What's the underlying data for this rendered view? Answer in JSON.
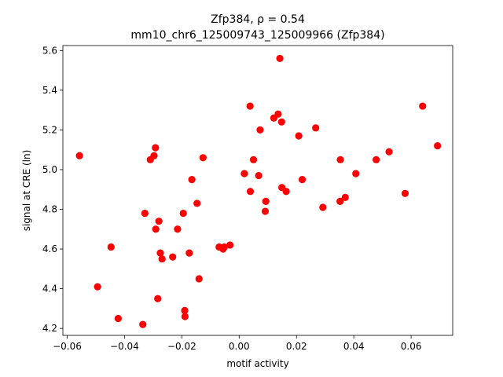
{
  "chart_data": {
    "type": "scatter",
    "title_line1": "Zfp384, ρ = 0.54",
    "title_line2": "mm10_chr6_125009743_125009966 (Zfp384)",
    "xlabel": "motif activity",
    "ylabel": "signal at CRE (ln)",
    "xlim": [
      -0.0615,
      0.0745
    ],
    "ylim": [
      4.165,
      5.625
    ],
    "xticks": [
      -0.06,
      -0.04,
      -0.02,
      0.0,
      0.02,
      0.04,
      0.06
    ],
    "xtick_labels": [
      "−0.06",
      "−0.04",
      "−0.02",
      "0.00",
      "0.02",
      "0.04",
      "0.06"
    ],
    "yticks": [
      4.2,
      4.4,
      4.6,
      4.8,
      5.0,
      5.2,
      5.4,
      5.6
    ],
    "ytick_labels": [
      "4.2",
      "4.4",
      "4.6",
      "4.8",
      "5.0",
      "5.2",
      "5.4",
      "5.6"
    ],
    "grid": false,
    "point_color": "#ff0000",
    "points": [
      {
        "x": -0.0557,
        "y": 5.07
      },
      {
        "x": -0.0494,
        "y": 4.41
      },
      {
        "x": -0.0447,
        "y": 4.61
      },
      {
        "x": -0.0422,
        "y": 4.25
      },
      {
        "x": -0.0336,
        "y": 4.22
      },
      {
        "x": -0.0329,
        "y": 4.78
      },
      {
        "x": -0.031,
        "y": 5.05
      },
      {
        "x": -0.0297,
        "y": 5.07
      },
      {
        "x": -0.0292,
        "y": 5.11
      },
      {
        "x": -0.0291,
        "y": 4.7
      },
      {
        "x": -0.0284,
        "y": 4.35
      },
      {
        "x": -0.028,
        "y": 4.74
      },
      {
        "x": -0.0275,
        "y": 4.58
      },
      {
        "x": -0.0269,
        "y": 4.55
      },
      {
        "x": -0.0232,
        "y": 4.56
      },
      {
        "x": -0.0215,
        "y": 4.7
      },
      {
        "x": -0.0195,
        "y": 4.78
      },
      {
        "x": -0.019,
        "y": 4.29
      },
      {
        "x": -0.0189,
        "y": 4.26
      },
      {
        "x": -0.0174,
        "y": 4.58
      },
      {
        "x": -0.0165,
        "y": 4.95
      },
      {
        "x": -0.0147,
        "y": 4.83
      },
      {
        "x": -0.014,
        "y": 4.45
      },
      {
        "x": -0.0126,
        "y": 5.06
      },
      {
        "x": -0.007,
        "y": 4.61
      },
      {
        "x": -0.0056,
        "y": 4.6
      },
      {
        "x": -0.0052,
        "y": 4.61
      },
      {
        "x": -0.0032,
        "y": 4.62
      },
      {
        "x": 0.0018,
        "y": 4.98
      },
      {
        "x": 0.0038,
        "y": 5.32
      },
      {
        "x": 0.0039,
        "y": 4.89
      },
      {
        "x": 0.005,
        "y": 5.05
      },
      {
        "x": 0.0068,
        "y": 4.97
      },
      {
        "x": 0.0073,
        "y": 5.2
      },
      {
        "x": 0.0091,
        "y": 4.79
      },
      {
        "x": 0.0093,
        "y": 4.84
      },
      {
        "x": 0.0121,
        "y": 5.26
      },
      {
        "x": 0.0136,
        "y": 5.28
      },
      {
        "x": 0.0142,
        "y": 5.56
      },
      {
        "x": 0.0148,
        "y": 5.24
      },
      {
        "x": 0.0149,
        "y": 4.91
      },
      {
        "x": 0.0164,
        "y": 4.89
      },
      {
        "x": 0.0208,
        "y": 5.17
      },
      {
        "x": 0.022,
        "y": 4.95
      },
      {
        "x": 0.0267,
        "y": 5.21
      },
      {
        "x": 0.0292,
        "y": 4.81
      },
      {
        "x": 0.0352,
        "y": 4.84
      },
      {
        "x": 0.0353,
        "y": 5.05
      },
      {
        "x": 0.037,
        "y": 4.86
      },
      {
        "x": 0.0407,
        "y": 4.98
      },
      {
        "x": 0.0478,
        "y": 5.05
      },
      {
        "x": 0.0523,
        "y": 5.09
      },
      {
        "x": 0.0579,
        "y": 4.88
      },
      {
        "x": 0.064,
        "y": 5.32
      },
      {
        "x": 0.0692,
        "y": 5.12
      }
    ]
  }
}
